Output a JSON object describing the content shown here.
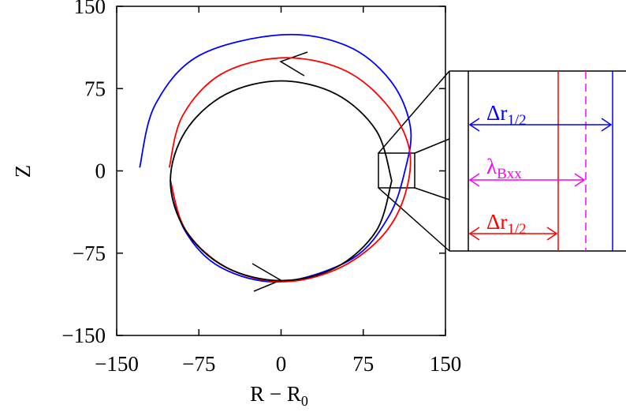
{
  "chart_data": {
    "type": "line",
    "xlabel": {
      "text": "R − R",
      "sub": "0"
    },
    "ylabel": "Z",
    "xlim": [
      -150,
      150
    ],
    "ylim": [
      -150,
      150
    ],
    "xticks": [
      {
        "value": -150,
        "label": "−150"
      },
      {
        "value": -75,
        "label": "−75"
      },
      0,
      75,
      150
    ],
    "yticks": [
      {
        "value": -150,
        "label": "−150"
      },
      {
        "value": -75,
        "label": "−75"
      },
      0,
      75,
      150
    ],
    "series": [
      {
        "color": "#0000ff",
        "x": [
          -129,
          -115,
          -75,
          0,
          60,
          100,
          118,
          113,
          98,
          65,
          0,
          -55,
          -88,
          -101
        ],
        "y": [
          3,
          60,
          105,
          124,
          114,
          82,
          40,
          0,
          -42,
          -80,
          -101,
          -88,
          -54,
          -9
        ]
      },
      {
        "color": "#ff0000",
        "x": [
          -102,
          -90,
          -55,
          0,
          55,
          95,
          117,
          112,
          90,
          50,
          0,
          -50,
          -87,
          -101
        ],
        "y": [
          3,
          50,
          88,
          103,
          93,
          62,
          20,
          -25,
          -62,
          -90,
          -101,
          -88,
          -54,
          -9
        ]
      },
      {
        "color": "#000000",
        "x": [
          101,
          87,
          50.5,
          0,
          -50.5,
          -87,
          -101,
          -87,
          -50.5,
          0,
          50.5,
          87,
          101
        ],
        "y": [
          -9,
          36.5,
          69.8,
          82,
          69.8,
          36.5,
          -9,
          -54.5,
          -87.8,
          -100,
          -87.8,
          -54.5,
          -9
        ]
      }
    ],
    "annotations": [
      {
        "text": "Δr",
        "sub": "1/2",
        "color": "#0000ff"
      },
      {
        "text": "λ",
        "sub": "Bxx",
        "color": "#ff00ff"
      },
      {
        "text": "Δr",
        "sub": "1/2",
        "color": "#ff0000"
      }
    ]
  }
}
